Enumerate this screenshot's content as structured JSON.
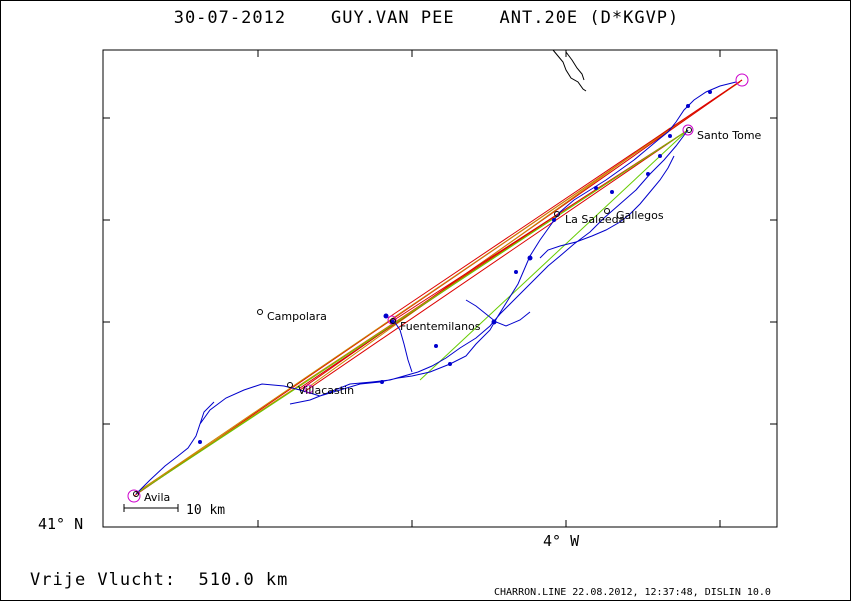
{
  "title": "30-07-2012    GUY.VAN PEE    ANT.20E (D*KGVP)",
  "axes": {
    "lat_label": "41° N",
    "lon_label": "4° W"
  },
  "places": [
    {
      "name": "Avila"
    },
    {
      "name": "Campolara"
    },
    {
      "name": "Villacastin"
    },
    {
      "name": "Fuentemilanos"
    },
    {
      "name": "La Saleeda"
    },
    {
      "name": "Gallegos"
    },
    {
      "name": "Santo Tome"
    }
  ],
  "scale_bar_label": "10 km",
  "distance_label": "Vrije Vlucht:  510.0 km",
  "footer": "CHARRON.LINE 22.08.2012, 12:37:48, DISLIN 10.0",
  "colors": {
    "track": "#0000cc",
    "legs": "#dd0000",
    "legs_alt": "#cc8800",
    "optimal": "#66cc00",
    "turnpoint": "#cc00cc"
  }
}
